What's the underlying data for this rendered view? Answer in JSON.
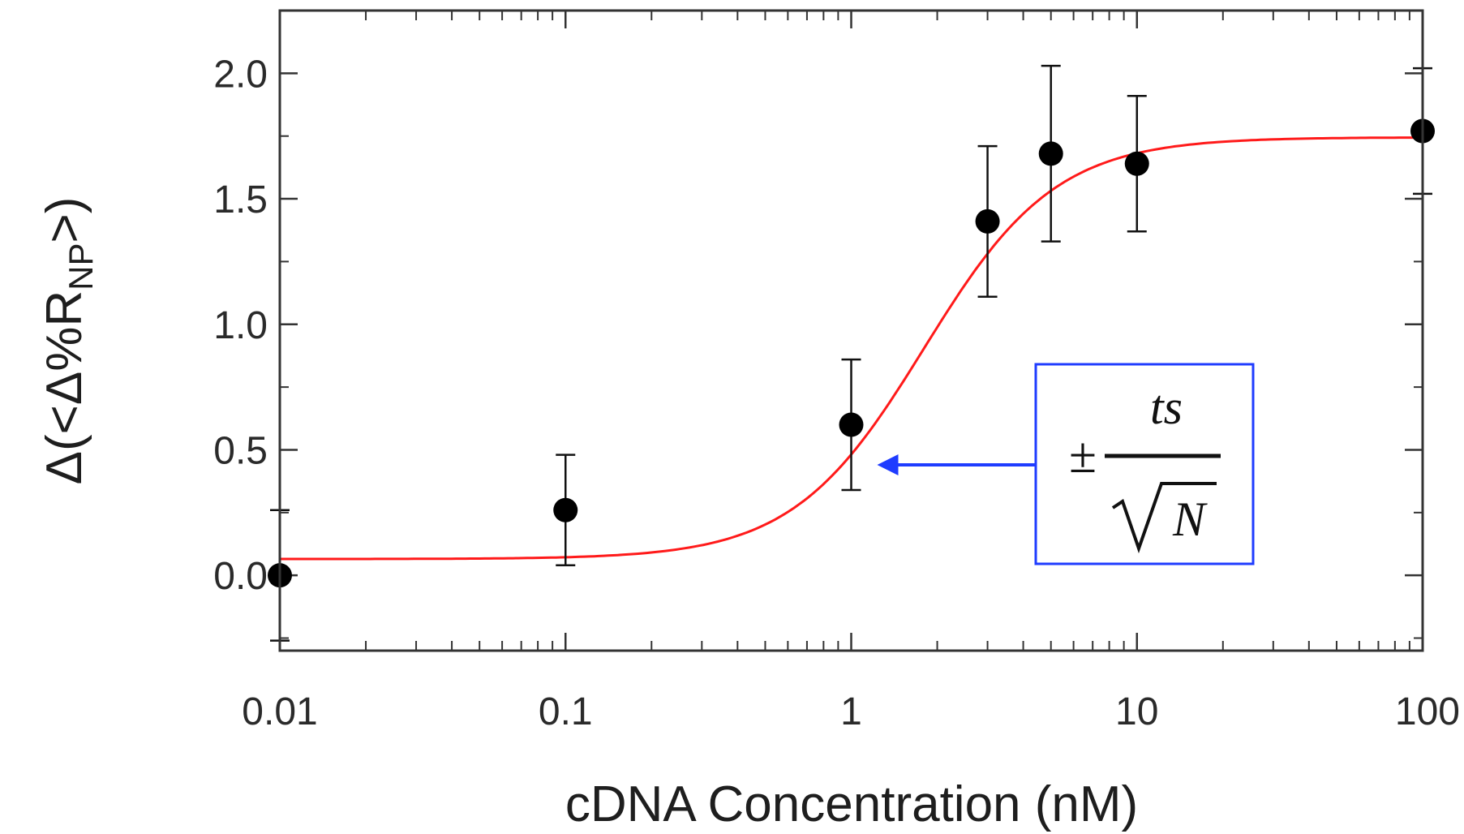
{
  "chart_data": {
    "type": "scatter",
    "title": "",
    "xlabel": "cDNA Concentration (nM)",
    "ylabel_main": "Δ(<Δ%R",
    "ylabel_sub": "NP",
    "ylabel_end": ">)",
    "x_scale": "log",
    "xlim": [
      0.01,
      100
    ],
    "ylim": [
      -0.3,
      2.25
    ],
    "x_ticks": [
      {
        "value": 0.01,
        "label": "0.01"
      },
      {
        "value": 0.1,
        "label": "0.1"
      },
      {
        "value": 1,
        "label": "1"
      },
      {
        "value": 10,
        "label": "10"
      },
      {
        "value": 100,
        "label": "100"
      }
    ],
    "y_ticks": [
      {
        "value": 0.0,
        "label": "0.0"
      },
      {
        "value": 0.5,
        "label": "0.5"
      },
      {
        "value": 1.0,
        "label": "1.0"
      },
      {
        "value": 1.5,
        "label": "1.5"
      },
      {
        "value": 2.0,
        "label": "2.0"
      }
    ],
    "grid": false,
    "legend": "none",
    "series": [
      {
        "kind": "points",
        "color": "#000000",
        "points": [
          {
            "x": 0.01,
            "y": 0.0,
            "err": 0.26
          },
          {
            "x": 0.1,
            "y": 0.26,
            "err": 0.22
          },
          {
            "x": 1,
            "y": 0.6,
            "err": 0.26
          },
          {
            "x": 3,
            "y": 1.41,
            "err": 0.3
          },
          {
            "x": 5,
            "y": 1.68,
            "err": 0.35
          },
          {
            "x": 10,
            "y": 1.64,
            "err": 0.27
          },
          {
            "x": 100,
            "y": 1.77,
            "err": 0.25
          }
        ]
      },
      {
        "kind": "fit",
        "color": "#ff1a1a",
        "model": "sigmoid-log",
        "bottom": 0.065,
        "top": 1.745,
        "x_mid": 1.8,
        "width_decades": 0.23
      }
    ],
    "annotation": {
      "box_color": "#1f3cff",
      "arrow_color": "#1f3cff",
      "target_x": 1,
      "target_y": 0.45,
      "plus_minus": "±",
      "numerator": "ts",
      "denominator": "N"
    }
  }
}
